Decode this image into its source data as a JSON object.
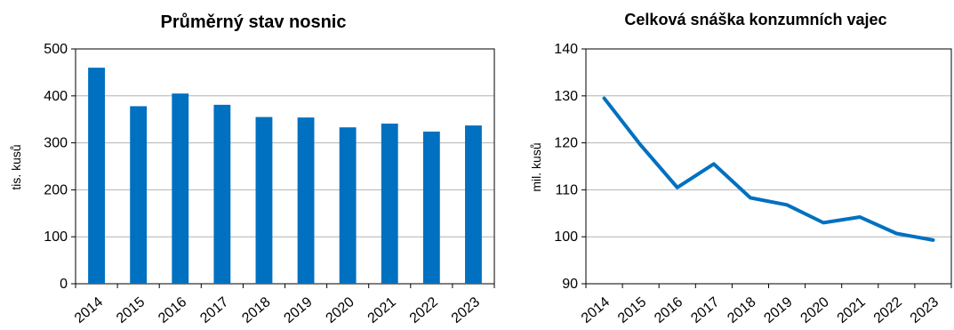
{
  "chart_data": [
    {
      "type": "bar",
      "title": "Průměrný stav nosnic",
      "xlabel": "",
      "ylabel": "tis. kusů",
      "categories": [
        "2014",
        "2015",
        "2016",
        "2017",
        "2018",
        "2019",
        "2020",
        "2021",
        "2022",
        "2023"
      ],
      "values": [
        460,
        378,
        405,
        381,
        355,
        354,
        333,
        341,
        324,
        337
      ],
      "ylim": [
        0,
        500
      ],
      "yticks": [
        0,
        100,
        200,
        300,
        400,
        500
      ],
      "grid": true,
      "color": "#0070C0"
    },
    {
      "type": "line",
      "title": "Celková snáška konzumních vajec",
      "xlabel": "",
      "ylabel": "mil. kusů",
      "categories": [
        "2014",
        "2015",
        "2016",
        "2017",
        "2018",
        "2019",
        "2020",
        "2021",
        "2022",
        "2023"
      ],
      "values": [
        129.5,
        119.5,
        110.5,
        115.5,
        108.3,
        106.8,
        103.0,
        104.2,
        100.7,
        99.3
      ],
      "ylim": [
        90,
        140
      ],
      "yticks": [
        90,
        100,
        110,
        120,
        130,
        140
      ],
      "grid": true,
      "color": "#0070C0"
    }
  ]
}
